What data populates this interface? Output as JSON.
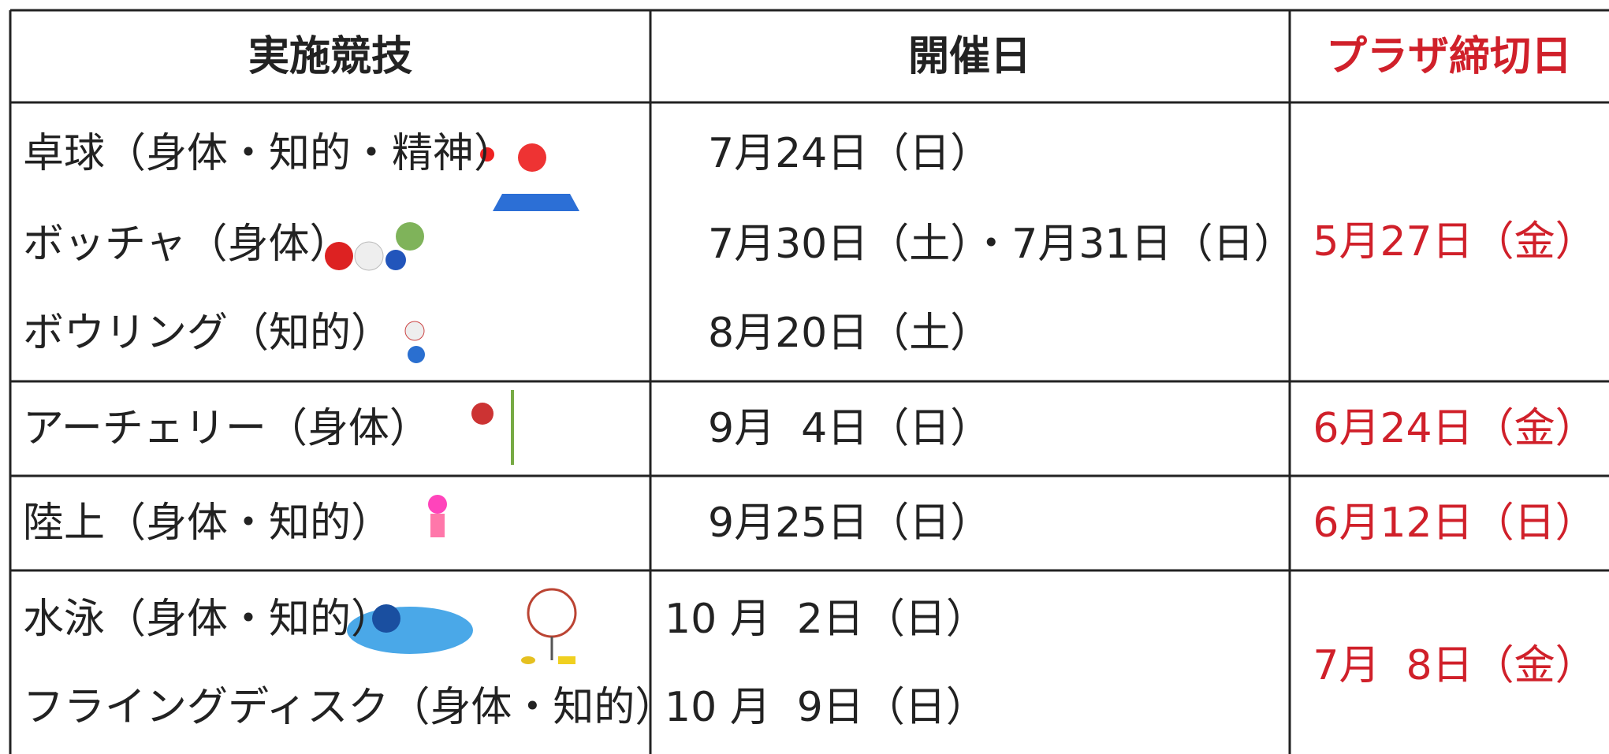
{
  "table": {
    "header": [
      "実施競技",
      "開催日",
      "プラザ締切日"
    ],
    "groups": [
      {
        "sports": [
          "卓球（身体・知的・精神）",
          "ボッチャ（身体）",
          "ボウリング（知的）"
        ],
        "dates": [
          "7月24日（日）",
          "7月30日（土）・7月31日（日）",
          "8月20日（土）"
        ],
        "deadline": "5月27日（金）"
      },
      {
        "sports": [
          "アーチェリー（身体）"
        ],
        "dates": [
          "9月  4日（日）"
        ],
        "deadline": "6月24日（金）"
      },
      {
        "sports": [
          "陸上（身体・知的）"
        ],
        "dates": [
          "9月25日（日）"
        ],
        "deadline": "6月12日（日）"
      },
      {
        "sports": [
          "水泳（身体・知的）",
          "フライングディスク（身体・知的）"
        ],
        "dates": [
          "10 月  2日（日）",
          "10 月  9日（日）"
        ],
        "deadline": "7月  8日（金）"
      }
    ]
  }
}
